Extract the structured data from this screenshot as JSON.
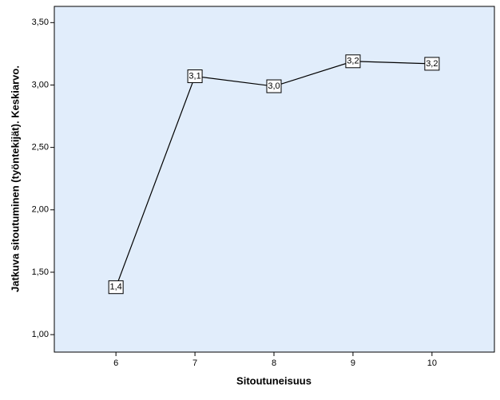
{
  "chart_data": {
    "type": "line",
    "x_label": "Sitoutuneisuus",
    "y_label": "Jatkuva sitoutuminen (työntekijät). Keskiarvo.",
    "x": [
      6,
      7,
      8,
      9,
      10
    ],
    "series": [
      {
        "color": "#000000",
        "values": [
          1.38,
          3.07,
          2.99,
          3.19,
          3.17
        ],
        "value_labels": [
          "1,4",
          "3,1",
          "3,0",
          "3,2",
          "3,2"
        ]
      }
    ],
    "xlim": [
      5.22,
      10.79
    ],
    "xticks": [
      6,
      7,
      8,
      9,
      10
    ],
    "ylim": [
      0.86,
      3.63
    ],
    "yticks": [
      {
        "value": 1.0,
        "label": "1,00"
      },
      {
        "value": 1.5,
        "label": "1,50"
      },
      {
        "value": 2.0,
        "label": "2,00"
      },
      {
        "value": 2.5,
        "label": "2,50"
      },
      {
        "value": 3.0,
        "label": "3,00"
      },
      {
        "value": 3.5,
        "label": "3,50"
      }
    ],
    "background": "#e1edfb"
  }
}
